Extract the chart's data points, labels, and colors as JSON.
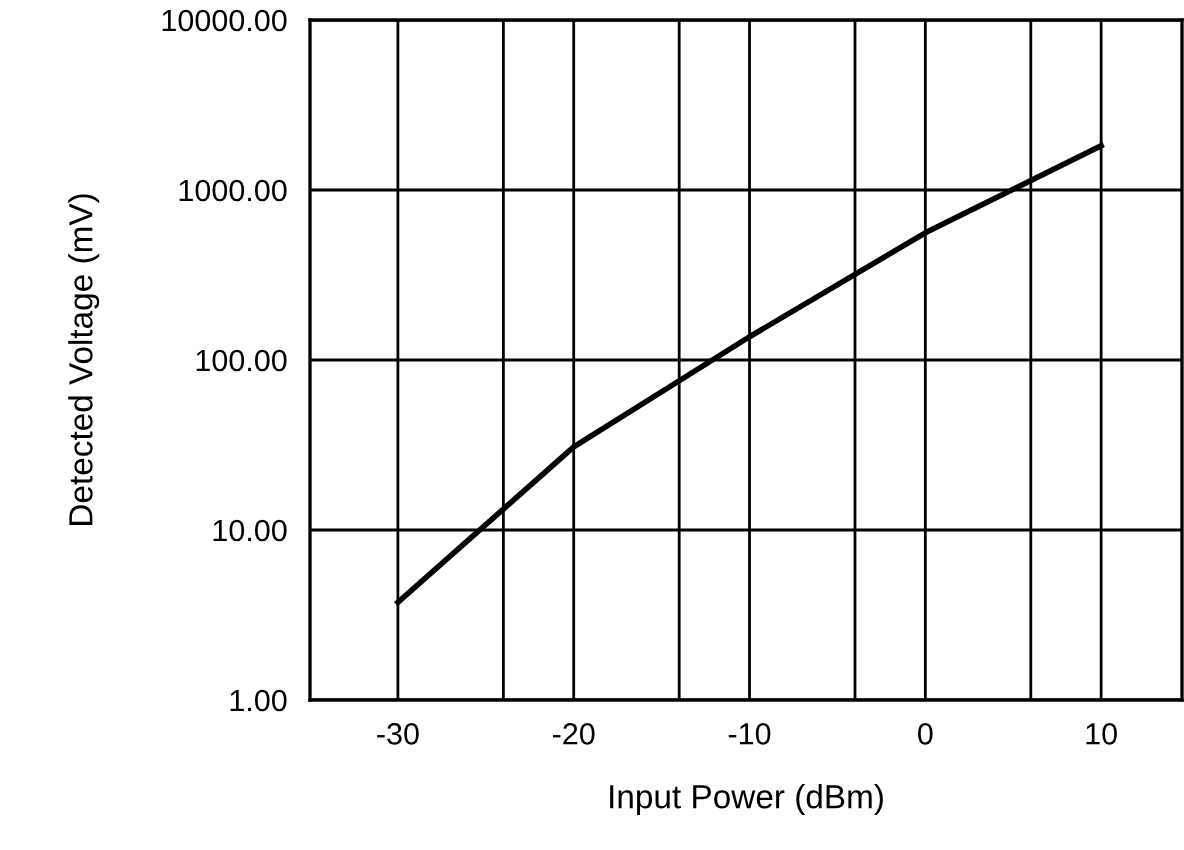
{
  "chart_data": {
    "type": "line",
    "xlabel": "Input Power (dBm)",
    "ylabel": "Detected Voltage (mV)",
    "x": [
      -30,
      -20,
      -10,
      0,
      10
    ],
    "series": [
      {
        "color": "#000000",
        "values": [
          3.76,
          30.8,
          137,
          560,
          1820
        ]
      }
    ],
    "log": "y",
    "xlim": [
      -35,
      14.6
    ],
    "xticks": [
      -30,
      {
        "value": -24,
        "label": null
      },
      -20,
      {
        "value": -14,
        "label": null
      },
      -10,
      {
        "value": -4,
        "label": null
      },
      0,
      {
        "value": 6,
        "label": null
      },
      10
    ],
    "ylim": [
      1,
      10000
    ],
    "yticks": [
      {
        "value": 1,
        "label": "1.00"
      },
      {
        "value": 10,
        "label": "10.00"
      },
      {
        "value": 100,
        "label": "100.00"
      },
      {
        "value": 1000,
        "label": "1000.00"
      },
      {
        "value": 10000,
        "label": "10000.00"
      }
    ],
    "grid": true,
    "marker": "none",
    "line_style": "solid"
  }
}
